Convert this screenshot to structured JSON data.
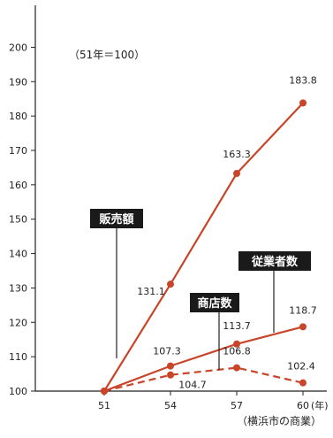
{
  "chart_data": {
    "type": "line",
    "note": "（51年＝100）",
    "x_unit": "(年)",
    "source": "（横浜市の商業）",
    "x": [
      "51",
      "54",
      "57",
      "60"
    ],
    "ylim": [
      100,
      205
    ],
    "y_ticks": [
      100,
      110,
      120,
      130,
      140,
      150,
      160,
      170,
      180,
      190,
      200
    ],
    "grid": false,
    "series": [
      {
        "name": "販売額",
        "values": [
          100,
          131.1,
          163.3,
          183.8
        ],
        "labels": [
          "",
          "131.1",
          "163.3",
          "183.8"
        ],
        "line_style": "solid",
        "color": "#c8452a"
      },
      {
        "name": "従業者数",
        "values": [
          100,
          107.3,
          113.7,
          118.7
        ],
        "labels": [
          "",
          "107.3",
          "113.7",
          "118.7"
        ],
        "line_style": "solid",
        "color": "#c8452a"
      },
      {
        "name": "商店数",
        "values": [
          100,
          104.7,
          106.8,
          102.4
        ],
        "labels": [
          "",
          "104.7",
          "106.8",
          "102.4"
        ],
        "line_style": "dashed",
        "color": "#c8452a"
      }
    ],
    "callout_bg": "#1a1a1a",
    "callout_fg": "#ffffff",
    "axis_color": "#222222"
  }
}
